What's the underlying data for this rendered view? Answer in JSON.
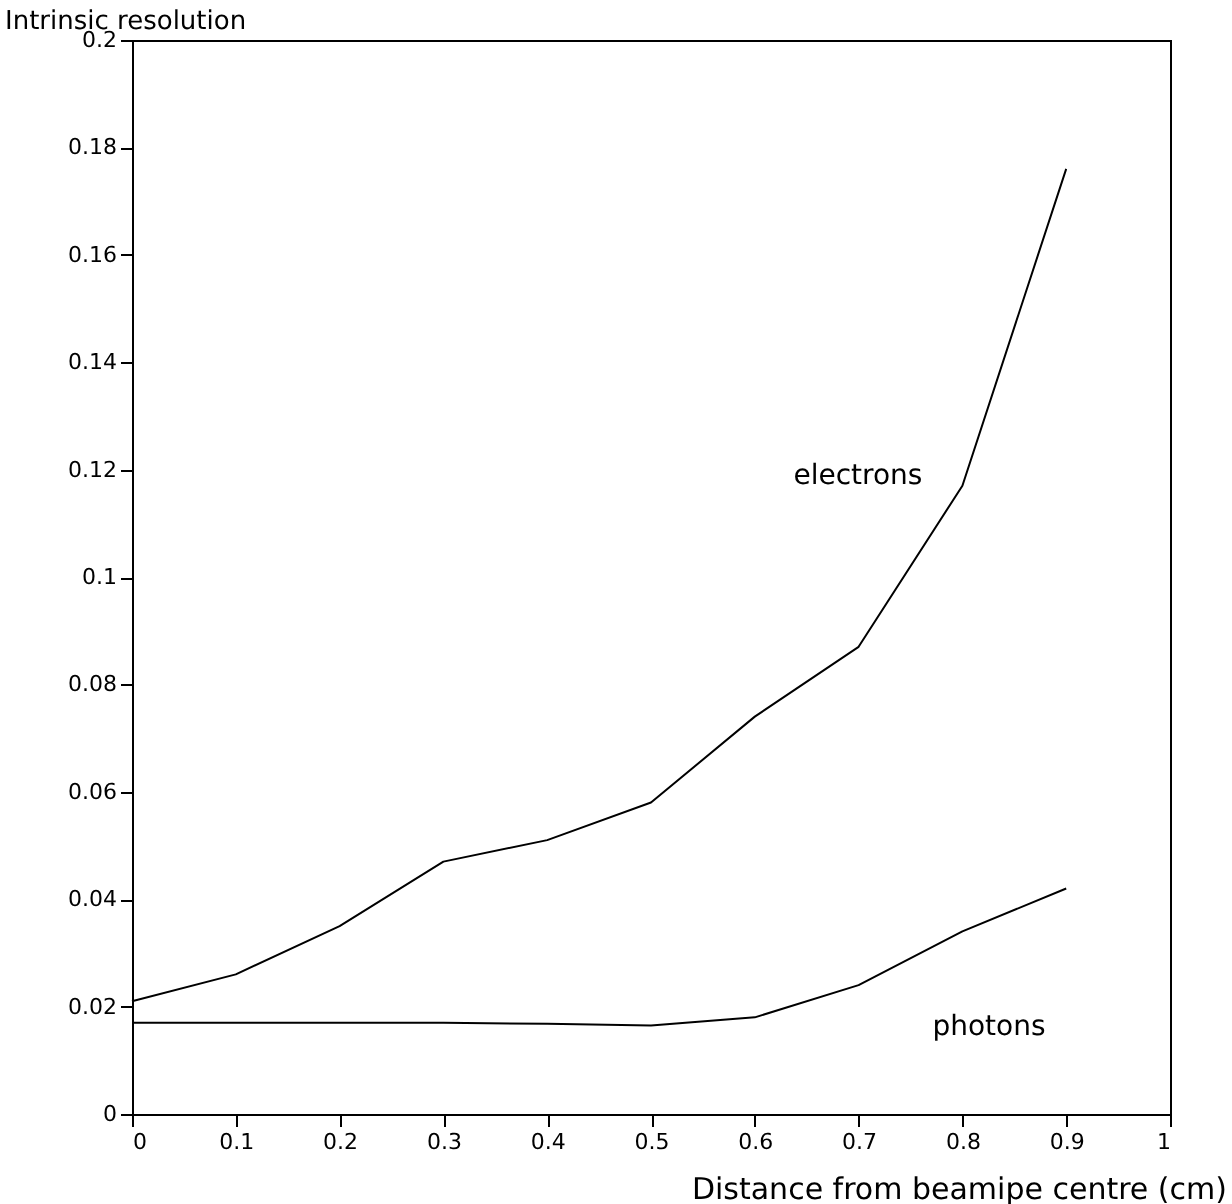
{
  "chart_data": {
    "type": "line",
    "xlabel": "Distance from beamipe centre (cm)",
    "ylabel": "Intrinsic resolution",
    "x": [
      0,
      0.1,
      0.2,
      0.3,
      0.4,
      0.5,
      0.6,
      0.7,
      0.8,
      0.9
    ],
    "series": [
      {
        "name": "electrons",
        "color": "#000000",
        "values": [
          0.021,
          0.026,
          0.035,
          0.047,
          0.051,
          0.058,
          0.074,
          0.087,
          0.117,
          0.176
        ]
      },
      {
        "name": "photons",
        "color": "#000000",
        "values": [
          0.017,
          0.017,
          0.017,
          0.017,
          0.0168,
          0.0165,
          0.018,
          0.024,
          0.034,
          0.042
        ]
      }
    ],
    "xlim": [
      0,
      1
    ],
    "xticks": [
      0,
      0.1,
      0.2,
      0.3,
      0.4,
      0.5,
      0.6,
      0.7,
      0.8,
      0.9,
      1
    ],
    "ylim": [
      0,
      0.2
    ],
    "yticks": [
      0,
      0.02,
      0.04,
      0.06,
      0.08,
      0.1,
      0.12,
      0.14,
      0.16,
      0.18,
      0.2
    ],
    "grid": false,
    "marker": "none",
    "line_style": "solid"
  }
}
